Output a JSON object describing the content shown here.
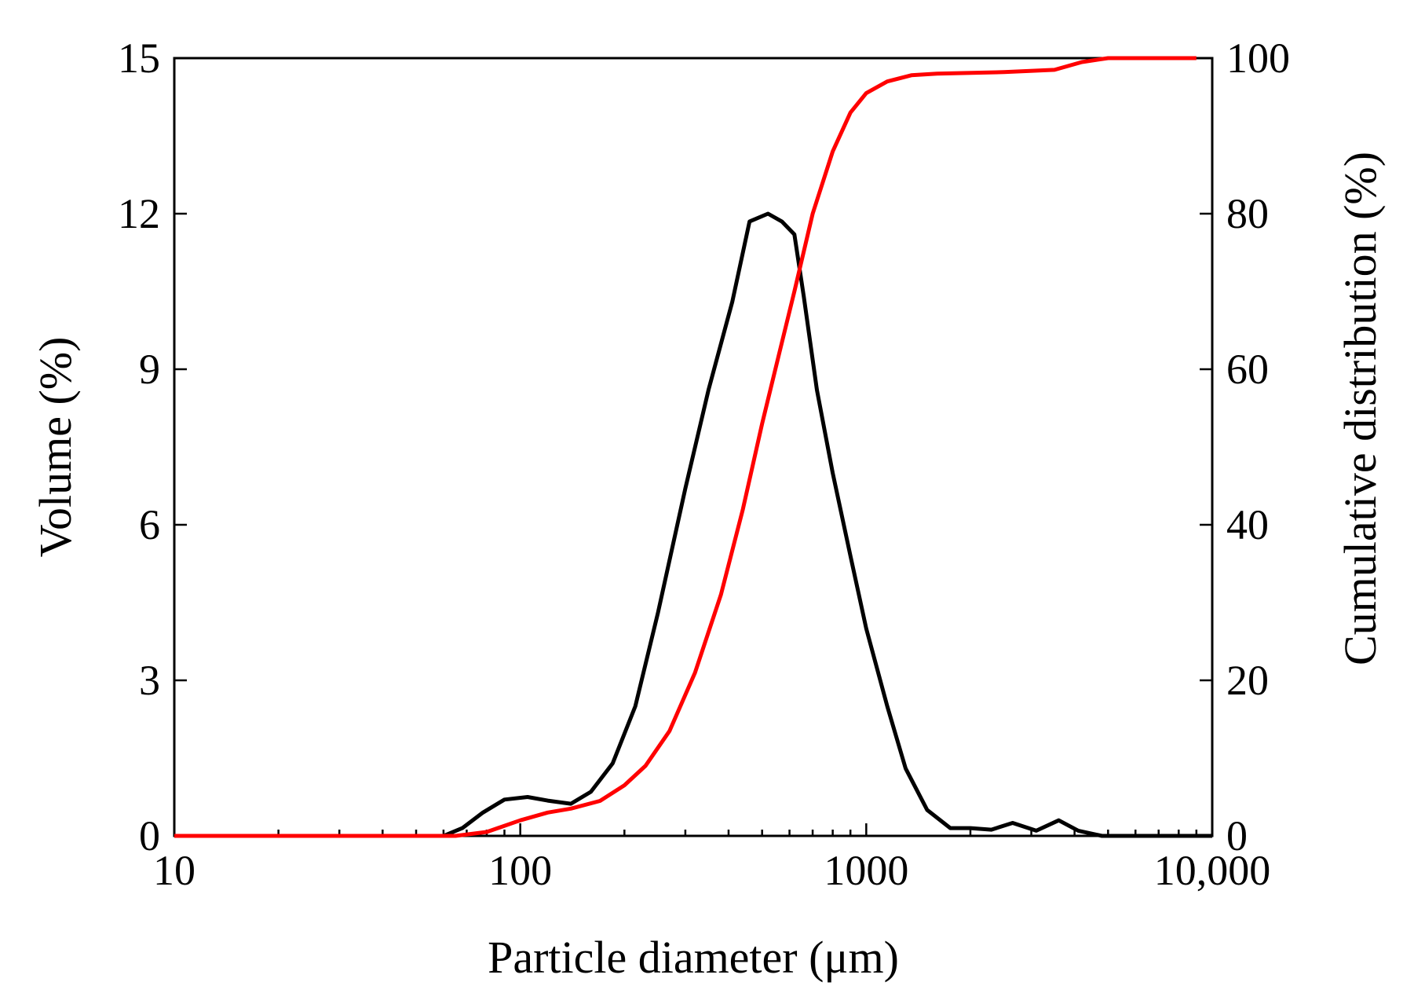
{
  "chart_data": {
    "type": "line",
    "xscale": "log",
    "xlim": [
      10,
      10000
    ],
    "xticks": [
      10,
      100,
      1000,
      10000
    ],
    "xtick_labels": [
      "10",
      "100",
      "1000",
      "10,000"
    ],
    "xlabel": "Particle diameter (μm)",
    "y_left": {
      "label": "Volume (%)",
      "lim": [
        0,
        15
      ],
      "ticks": [
        0,
        3,
        6,
        9,
        12,
        15
      ],
      "tick_labels": [
        "0",
        "3",
        "6",
        "9",
        "12",
        "15"
      ]
    },
    "y_right": {
      "label": "Cumulative distribution (%)",
      "lim": [
        0,
        100
      ],
      "ticks": [
        0,
        20,
        40,
        60,
        80,
        100
      ],
      "tick_labels": [
        "0",
        "20",
        "40",
        "60",
        "80",
        "100"
      ]
    },
    "grid": false,
    "series": [
      {
        "name": "Volume",
        "axis": "left",
        "color": "#000000",
        "points": [
          [
            10,
            0
          ],
          [
            60,
            0
          ],
          [
            68,
            0.15
          ],
          [
            78,
            0.45
          ],
          [
            90,
            0.7
          ],
          [
            105,
            0.75
          ],
          [
            120,
            0.68
          ],
          [
            140,
            0.62
          ],
          [
            160,
            0.85
          ],
          [
            185,
            1.4
          ],
          [
            215,
            2.5
          ],
          [
            250,
            4.3
          ],
          [
            300,
            6.7
          ],
          [
            350,
            8.6
          ],
          [
            410,
            10.3
          ],
          [
            460,
            11.85
          ],
          [
            520,
            12.0
          ],
          [
            570,
            11.85
          ],
          [
            620,
            11.6
          ],
          [
            660,
            10.4
          ],
          [
            720,
            8.6
          ],
          [
            800,
            7.0
          ],
          [
            900,
            5.4
          ],
          [
            1000,
            4.0
          ],
          [
            1150,
            2.5
          ],
          [
            1300,
            1.3
          ],
          [
            1500,
            0.5
          ],
          [
            1750,
            0.15
          ],
          [
            2000,
            0.15
          ],
          [
            2300,
            0.12
          ],
          [
            2650,
            0.25
          ],
          [
            3100,
            0.1
          ],
          [
            3600,
            0.3
          ],
          [
            4100,
            0.1
          ],
          [
            4800,
            0.0
          ],
          [
            10000,
            0.0
          ]
        ]
      },
      {
        "name": "Cumulative distribution",
        "axis": "right",
        "color": "#ff0000",
        "points": [
          [
            10,
            0
          ],
          [
            65,
            0
          ],
          [
            80,
            0.5
          ],
          [
            100,
            2.0
          ],
          [
            120,
            3.0
          ],
          [
            140,
            3.5
          ],
          [
            170,
            4.5
          ],
          [
            200,
            6.5
          ],
          [
            230,
            9.0
          ],
          [
            270,
            13.5
          ],
          [
            320,
            21.0
          ],
          [
            380,
            31.0
          ],
          [
            440,
            42.0
          ],
          [
            500,
            53.0
          ],
          [
            560,
            62.0
          ],
          [
            620,
            70.0
          ],
          [
            700,
            80.0
          ],
          [
            800,
            88.0
          ],
          [
            900,
            93.0
          ],
          [
            1000,
            95.5
          ],
          [
            1150,
            97.0
          ],
          [
            1350,
            97.8
          ],
          [
            1600,
            98.0
          ],
          [
            2500,
            98.2
          ],
          [
            3500,
            98.5
          ],
          [
            4200,
            99.5
          ],
          [
            5000,
            100
          ],
          [
            9000,
            100
          ]
        ]
      }
    ]
  }
}
